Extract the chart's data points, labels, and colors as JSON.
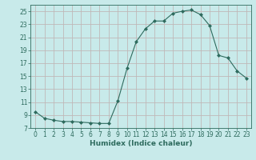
{
  "x": [
    0,
    1,
    2,
    3,
    4,
    5,
    6,
    7,
    8,
    9,
    10,
    11,
    12,
    13,
    14,
    15,
    16,
    17,
    18,
    19,
    20,
    21,
    22,
    23
  ],
  "y": [
    9.5,
    8.5,
    8.2,
    8.0,
    8.0,
    7.9,
    7.8,
    7.7,
    7.7,
    11.2,
    16.2,
    20.3,
    22.3,
    23.5,
    23.5,
    24.7,
    25.0,
    25.2,
    24.5,
    22.8,
    18.2,
    17.8,
    15.8,
    14.7
  ],
  "line_color": "#2e6b5e",
  "marker": "D",
  "marker_size": 2.0,
  "bg_color": "#c8eaea",
  "grid_color": "#c0b8b8",
  "xlabel": "Humidex (Indice chaleur)",
  "xlim": [
    -0.5,
    23.5
  ],
  "ylim": [
    7,
    26
  ],
  "yticks": [
    7,
    9,
    11,
    13,
    15,
    17,
    19,
    21,
    23,
    25
  ],
  "xticks": [
    0,
    1,
    2,
    3,
    4,
    5,
    6,
    7,
    8,
    9,
    10,
    11,
    12,
    13,
    14,
    15,
    16,
    17,
    18,
    19,
    20,
    21,
    22,
    23
  ],
  "tick_color": "#2e6b5e",
  "label_fontsize": 5.5,
  "axis_label_fontsize": 6.5
}
